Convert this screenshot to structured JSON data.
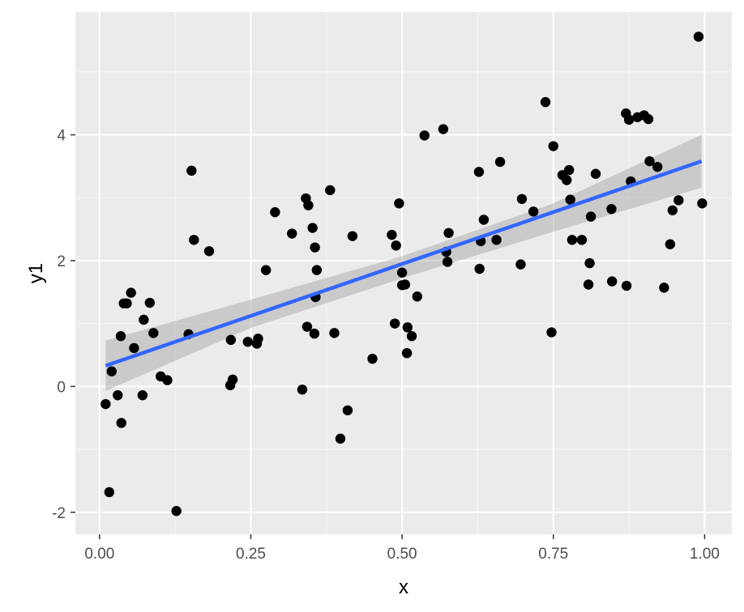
{
  "chart_data": {
    "type": "scatter",
    "title": "",
    "xlabel": "x",
    "ylabel": "y1",
    "xlim": [
      -0.04,
      1.045
    ],
    "ylim": [
      -2.35,
      5.95
    ],
    "x_ticks": [
      0,
      0.25,
      0.5,
      0.75,
      1
    ],
    "x_tick_labels": [
      "0.00",
      "0.25",
      "0.50",
      "0.75",
      "1.00"
    ],
    "y_ticks": [
      -2,
      0,
      2,
      4
    ],
    "y_tick_labels": [
      "-2",
      "0",
      "2",
      "4"
    ],
    "grid": true,
    "legend": "none",
    "colors": {
      "panel": "#ebebeb",
      "grid_major": "#ffffff",
      "points": "#000000",
      "fit_line": "#3366ff",
      "ribbon": "#999999"
    },
    "series": [
      {
        "kind": "points",
        "x": [
          0.01,
          0.016,
          0.02,
          0.03,
          0.035,
          0.036,
          0.04,
          0.045,
          0.052,
          0.057,
          0.071,
          0.073,
          0.083,
          0.089,
          0.101,
          0.112,
          0.127,
          0.147,
          0.152,
          0.156,
          0.181,
          0.216,
          0.217,
          0.22,
          0.245,
          0.26,
          0.262,
          0.275,
          0.29,
          0.318,
          0.335,
          0.341,
          0.343,
          0.345,
          0.352,
          0.355,
          0.356,
          0.357,
          0.359,
          0.381,
          0.388,
          0.398,
          0.41,
          0.418,
          0.451,
          0.483,
          0.488,
          0.49,
          0.495,
          0.5,
          0.5,
          0.505,
          0.508,
          0.509,
          0.516,
          0.525,
          0.537,
          0.568,
          0.573,
          0.575,
          0.577,
          0.627,
          0.628,
          0.63,
          0.635,
          0.656,
          0.662,
          0.696,
          0.698,
          0.717,
          0.737,
          0.747,
          0.75,
          0.765,
          0.772,
          0.776,
          0.778,
          0.781,
          0.797,
          0.808,
          0.81,
          0.812,
          0.82,
          0.846,
          0.847,
          0.87,
          0.871,
          0.875,
          0.878,
          0.889,
          0.9,
          0.907,
          0.909,
          0.922,
          0.933,
          0.943,
          0.947,
          0.957,
          0.99,
          0.996
        ],
        "y": [
          -0.28,
          -1.68,
          0.24,
          -0.14,
          0.8,
          -0.58,
          1.32,
          1.32,
          1.49,
          0.61,
          -0.14,
          1.06,
          1.33,
          0.85,
          0.16,
          0.1,
          -1.98,
          0.83,
          3.43,
          2.33,
          2.15,
          0.02,
          0.74,
          0.11,
          0.71,
          0.68,
          0.76,
          1.85,
          2.77,
          2.43,
          -0.05,
          2.99,
          0.95,
          2.88,
          2.52,
          0.84,
          2.21,
          1.42,
          1.85,
          3.12,
          0.85,
          -0.83,
          -0.38,
          2.39,
          0.44,
          2.41,
          1.0,
          2.24,
          2.91,
          1.81,
          1.61,
          1.62,
          0.53,
          0.94,
          0.8,
          1.43,
          3.99,
          4.09,
          2.14,
          1.98,
          2.44,
          3.41,
          1.87,
          2.31,
          2.65,
          2.33,
          3.57,
          1.94,
          2.98,
          2.78,
          4.52,
          0.86,
          3.82,
          3.36,
          3.28,
          3.44,
          2.97,
          2.33,
          2.33,
          1.62,
          1.96,
          2.7,
          3.38,
          2.82,
          1.67,
          4.34,
          1.6,
          4.24,
          3.26,
          4.28,
          4.31,
          4.25,
          3.58,
          3.49,
          1.57,
          2.26,
          2.8,
          2.96,
          5.56,
          2.91
        ]
      },
      {
        "kind": "fit",
        "method": "linear",
        "x": [
          0.01,
          0.995
        ],
        "y": [
          0.33,
          3.58
        ]
      },
      {
        "kind": "confidence_band",
        "x": [
          0.01,
          0.25,
          0.5,
          0.75,
          0.995
        ],
        "lower": [
          -0.07,
          0.93,
          1.72,
          2.46,
          3.16
        ],
        "upper": [
          0.73,
          1.38,
          2.07,
          2.91,
          4.0
        ]
      }
    ]
  }
}
